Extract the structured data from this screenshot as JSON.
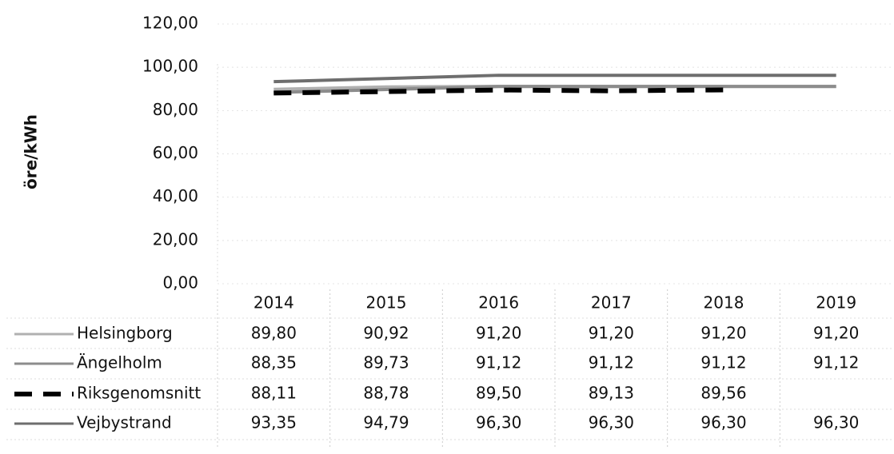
{
  "chart_data": {
    "type": "line",
    "y_label": "öre/kWh",
    "categories": [
      "2014",
      "2015",
      "2016",
      "2017",
      "2018",
      "2019"
    ],
    "series": [
      {
        "name": "Helsingborg",
        "color": "#b0b0b0",
        "dash": false,
        "values": [
          89.8,
          90.92,
          91.2,
          91.2,
          91.2,
          91.2
        ],
        "value_labels": [
          "89,80",
          "90,92",
          "91,20",
          "91,20",
          "91,20",
          "91,20"
        ]
      },
      {
        "name": "Ängelholm",
        "color": "#8c8c8c",
        "dash": false,
        "values": [
          88.35,
          89.73,
          91.12,
          91.12,
          91.12,
          91.12
        ],
        "value_labels": [
          "88,35",
          "89,73",
          "91,12",
          "91,12",
          "91,12",
          "91,12"
        ]
      },
      {
        "name": "Riksgenomsnitt",
        "color": "#000000",
        "dash": true,
        "values": [
          88.11,
          88.78,
          89.5,
          89.13,
          89.56,
          null
        ],
        "value_labels": [
          "88,11",
          "88,78",
          "89,50",
          "89,13",
          "89,56",
          null
        ]
      },
      {
        "name": "Vejbystrand",
        "color": "#6e6e6e",
        "dash": false,
        "values": [
          93.35,
          94.79,
          96.3,
          96.3,
          96.3,
          96.3
        ],
        "value_labels": [
          "93,35",
          "94,79",
          "96,30",
          "96,30",
          "96,30",
          "96,30"
        ]
      }
    ],
    "ylim": [
      0,
      120
    ],
    "yticks": [
      {
        "value": 0,
        "label": "0,00"
      },
      {
        "value": 20,
        "label": "20,00"
      },
      {
        "value": 40,
        "label": "40,00"
      },
      {
        "value": 60,
        "label": "60,00"
      },
      {
        "value": 80,
        "label": "80,00"
      },
      {
        "value": 100,
        "label": "100,00"
      },
      {
        "value": 120,
        "label": "120,00"
      }
    ],
    "grid": true
  }
}
